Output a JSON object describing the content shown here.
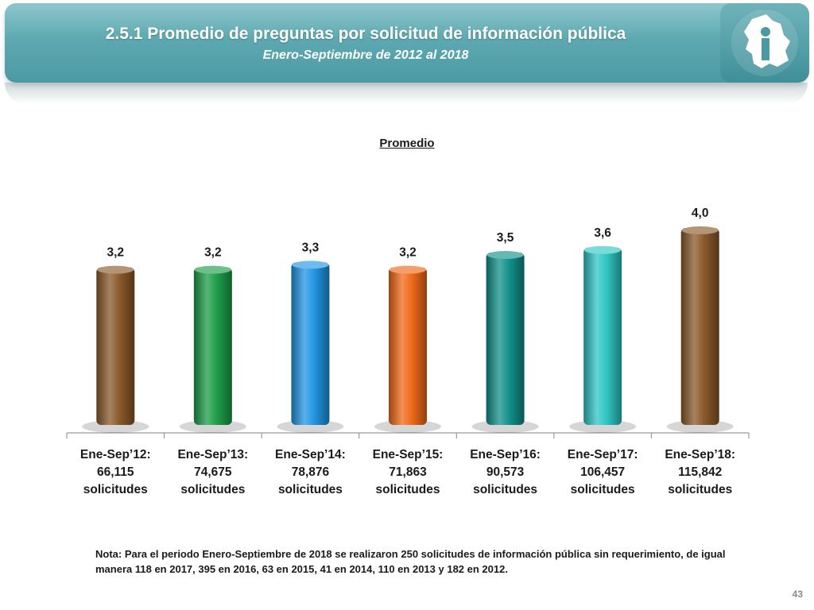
{
  "header": {
    "title": "2.5.1 Promedio de preguntas por solicitud de información pública",
    "subtitle": "Enero-Septiembre de 2012 al 2018"
  },
  "chart_data": {
    "type": "bar",
    "title": "Promedio",
    "categories": [
      {
        "period": "Ene-Sep’12:",
        "count": "66,115",
        "unit": "solicitudes"
      },
      {
        "period": "Ene-Sep’13:",
        "count": "74,675",
        "unit": "solicitudes"
      },
      {
        "period": "Ene-Sep’14:",
        "count": "78,876",
        "unit": "solicitudes"
      },
      {
        "period": "Ene-Sep’15:",
        "count": "71,863",
        "unit": "solicitudes"
      },
      {
        "period": "Ene-Sep’16:",
        "count": "90,573",
        "unit": "solicitudes"
      },
      {
        "period": "Ene-Sep’17:",
        "count": "106,457",
        "unit": "solicitudes"
      },
      {
        "period": "Ene-Sep’18:",
        "count": "115,842",
        "unit": "solicitudes"
      }
    ],
    "values": [
      3.2,
      3.2,
      3.3,
      3.2,
      3.5,
      3.6,
      4.0
    ],
    "value_labels": [
      "3,2",
      "3,2",
      "3,3",
      "3,2",
      "3,5",
      "3,6",
      "4,0"
    ],
    "colors": [
      "#8b5a2b",
      "#1e9e4a",
      "#2196e3",
      "#f06a1a",
      "#13918a",
      "#2fc6c4",
      "#8b5a2b"
    ],
    "ylim": [
      0,
      4.3
    ],
    "xlabel": "",
    "ylabel": ""
  },
  "note": "Nota: Para el periodo Enero-Septiembre de 2018 se realizaron 250 solicitudes de información pública sin requerimiento, de igual manera 118 en 2017, 395 en 2016, 63 en 2015, 41 en 2014, 110 en 2013 y 182 en 2012.",
  "page_number": "43"
}
